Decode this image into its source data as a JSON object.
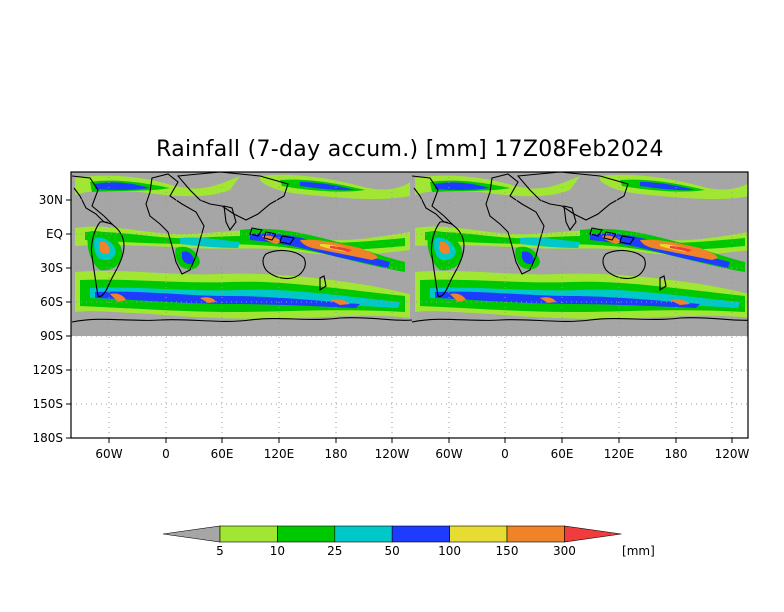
{
  "title": "Rainfall (7-day accum.) [mm] 17Z08Feb2024",
  "map": {
    "lat_labels": [
      "30N",
      "EQ",
      "30S",
      "60S",
      "90S",
      "120S",
      "150S",
      "180S"
    ],
    "lon_labels": [
      "60W",
      "0",
      "60E",
      "120E",
      "180",
      "120W",
      "60W",
      "0",
      "60E",
      "120E",
      "180",
      "120W"
    ]
  },
  "colorbar": {
    "levels": [
      "5",
      "10",
      "25",
      "50",
      "100",
      "150",
      "300"
    ],
    "unit": "[mm]",
    "colors": {
      "below": "#a6a6a6",
      "bins": [
        "#a0e632",
        "#00c800",
        "#00c8c8",
        "#1e3cff",
        "#e6dc32",
        "#f08228"
      ],
      "above": "#f03c3c"
    }
  },
  "colors": {
    "no_rain": "#a6a6a6",
    "light": "#a0e632",
    "green": "#00c800",
    "cyan": "#00c8c8",
    "blue": "#1e3cff",
    "yellow": "#e6dc32",
    "orange": "#f08228",
    "red": "#f03c3c",
    "coast": "#000000"
  }
}
